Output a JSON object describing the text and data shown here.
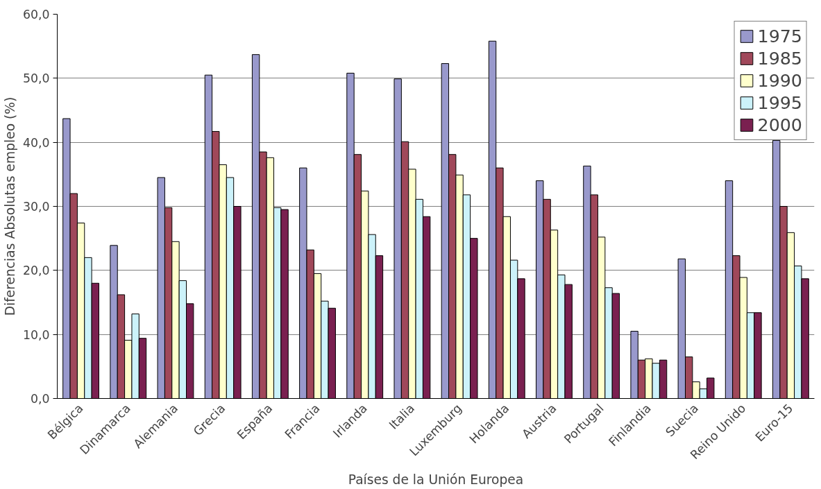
{
  "chart_data": {
    "type": "bar",
    "xlabel": "Países de la Unión Europea",
    "ylabel": "Diferencias Absolutas empleo (%)",
    "categories": [
      "Bélgica",
      "Dinamarca",
      "Alemania",
      "Grecia",
      "España",
      "Francia",
      "Irlanda",
      "Italia",
      "Luxemburg",
      "Holanda",
      "Austria",
      "Portugal",
      "Finlandia",
      "Suecia",
      "Reino Unido",
      "Euro-15"
    ],
    "series": [
      {
        "name": "1975",
        "color": "#9999cc",
        "values": [
          43.7,
          23.9,
          34.5,
          50.5,
          53.7,
          36.0,
          50.8,
          49.9,
          52.3,
          55.8,
          34.0,
          36.3,
          10.5,
          21.8,
          34.0,
          40.3
        ]
      },
      {
        "name": "1985",
        "color": "#a0485a",
        "values": [
          32.0,
          16.2,
          29.8,
          41.7,
          38.5,
          23.2,
          38.1,
          40.1,
          38.1,
          36.0,
          31.1,
          31.8,
          6.0,
          6.5,
          22.3,
          30.0
        ]
      },
      {
        "name": "1990",
        "color": "#ffffcc",
        "values": [
          27.4,
          9.1,
          24.5,
          36.5,
          37.6,
          19.5,
          32.4,
          35.8,
          34.9,
          28.4,
          26.3,
          25.2,
          6.2,
          2.6,
          18.9,
          25.9
        ]
      },
      {
        "name": "1995",
        "color": "#ccf2fa",
        "values": [
          22.0,
          13.2,
          18.4,
          34.5,
          29.8,
          15.2,
          25.6,
          31.1,
          31.8,
          21.6,
          19.3,
          17.3,
          5.5,
          1.5,
          13.4,
          20.7
        ]
      },
      {
        "name": "2000",
        "color": "#7a2050",
        "values": [
          18.0,
          9.4,
          14.8,
          30.0,
          29.5,
          14.1,
          22.3,
          28.4,
          25.0,
          18.7,
          17.8,
          16.4,
          6.0,
          3.2,
          13.4,
          18.7
        ]
      }
    ],
    "ylim": [
      0,
      60
    ],
    "yticks": [
      {
        "value": 0,
        "label": "0,0"
      },
      {
        "value": 10,
        "label": "10,0"
      },
      {
        "value": 20,
        "label": "20,0"
      },
      {
        "value": 30,
        "label": "30,0"
      },
      {
        "value": 40,
        "label": "40,0"
      },
      {
        "value": 50,
        "label": "50,0"
      },
      {
        "value": 60,
        "label": "60,0"
      }
    ],
    "grid": "y",
    "legend": "top right"
  }
}
